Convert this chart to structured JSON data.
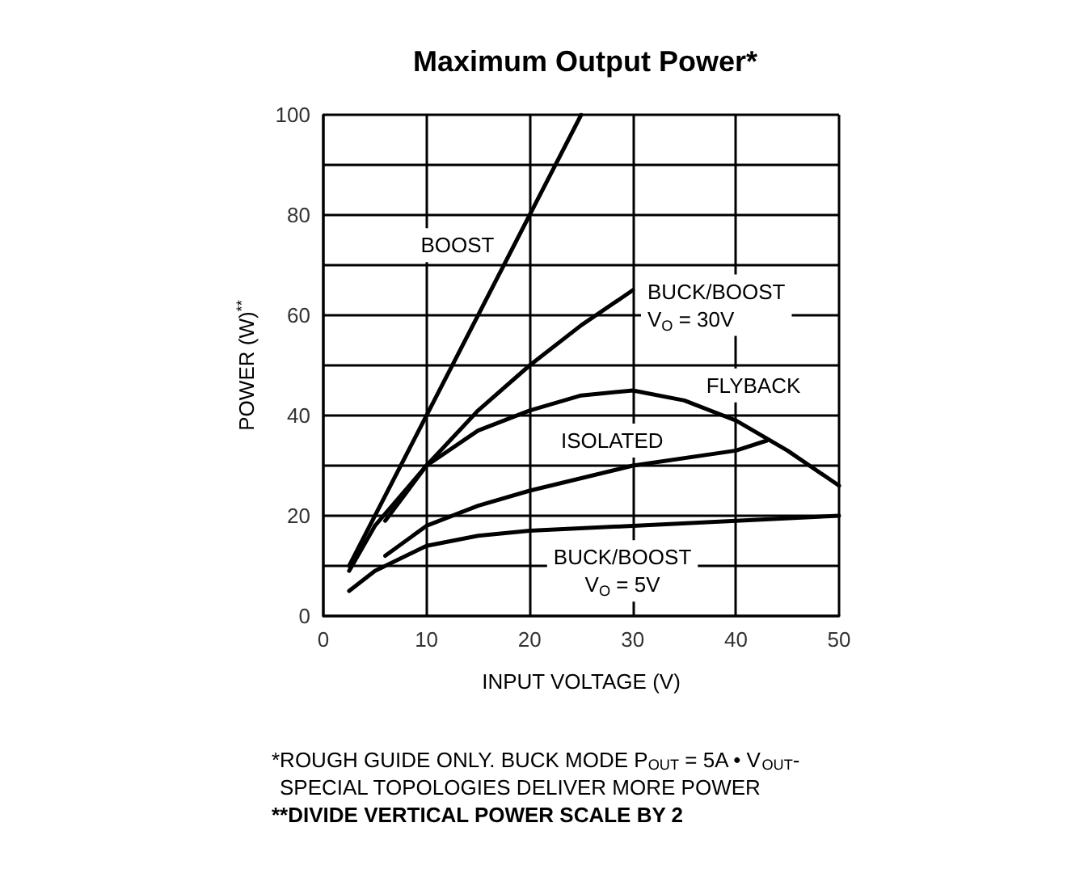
{
  "chart_data": {
    "type": "line",
    "title": "Maximum Output Power*",
    "xlabel": "INPUT VOLTAGE (V)",
    "ylabel": "POWER (W)$^{**}$",
    "xlim": [
      0,
      50
    ],
    "xticks": [
      0,
      10,
      20,
      30,
      40,
      50
    ],
    "ylim": [
      0,
      100
    ],
    "yticks": [
      0,
      {
        "value": 10,
        "label": null
      },
      20,
      {
        "value": 30,
        "label": null
      },
      40,
      {
        "value": 50,
        "label": null
      },
      60,
      {
        "value": 70,
        "label": null
      },
      80,
      {
        "value": 90,
        "label": null
      },
      100
    ],
    "grid": true,
    "legend": false,
    "marker": "none",
    "line_style": "solid",
    "series": [
      {
        "name": "BOOST",
        "color": "#000000",
        "x": [
          2.5,
          10,
          20,
          25
        ],
        "values": [
          10,
          40,
          80,
          100
        ]
      },
      {
        "name": "BUCK/BOOST\nV$_{O}$ = 30V",
        "color": "#000000",
        "x": [
          2.5,
          5,
          10,
          15,
          20,
          25,
          30
        ],
        "values": [
          9,
          18,
          30,
          41,
          50,
          58,
          65
        ]
      },
      {
        "name": "FLYBACK",
        "color": "#000000",
        "x": [
          6,
          10,
          15,
          20,
          25,
          30,
          35,
          40,
          45,
          50
        ],
        "values": [
          19,
          30,
          37,
          41,
          44,
          45,
          43,
          39,
          33,
          26
        ]
      },
      {
        "name": "ISOLATED",
        "color": "#000000",
        "x": [
          6,
          10,
          15,
          20,
          30,
          40,
          43
        ],
        "values": [
          12,
          18,
          22,
          25,
          30,
          33,
          35
        ]
      },
      {
        "name": "BUCK/BOOST\nV$_{O}$ = 5V",
        "color": "#000000",
        "x": [
          2.5,
          5,
          10,
          15,
          20,
          30,
          40,
          50
        ],
        "values": [
          5,
          9,
          14,
          16,
          17,
          18,
          19,
          20
        ]
      }
    ],
    "annotations": [
      "*ROUGH GUIDE ONLY. BUCK MODE P$_{OUT}$ = 5A • V$_{OUT}$-",
      "SPECIAL TOPOLOGIES DELIVER MORE POWER",
      "**DIVIDE VERTICAL POWER SCALE BY 2"
    ]
  }
}
